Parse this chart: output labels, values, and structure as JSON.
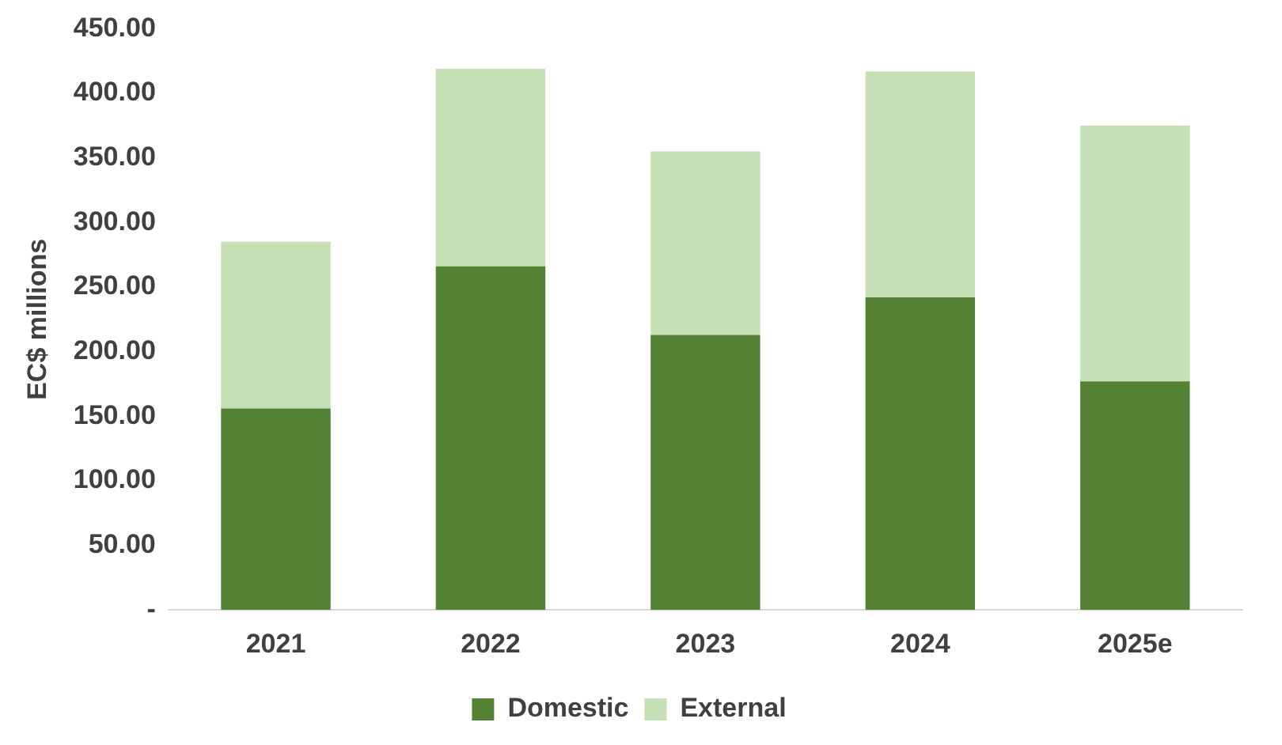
{
  "chart_data": {
    "type": "bar",
    "stacked": true,
    "ylabel": "EC$ millions",
    "categories": [
      "2021",
      "2022",
      "2023",
      "2024",
      "2025e"
    ],
    "series": [
      {
        "name": "Domestic",
        "color": "#548235",
        "values": [
          156,
          266,
          213,
          242,
          177
        ]
      },
      {
        "name": "External",
        "color": "#c5e0b4",
        "values": [
          129,
          153,
          142,
          175,
          198
        ]
      }
    ],
    "ylim": [
      0,
      450
    ],
    "yticks": [
      {
        "value": 0,
        "label": "-"
      },
      {
        "value": 50,
        "label": "50.00"
      },
      {
        "value": 100,
        "label": "100.00"
      },
      {
        "value": 150,
        "label": "150.00"
      },
      {
        "value": 200,
        "label": "200.00"
      },
      {
        "value": 250,
        "label": "250.00"
      },
      {
        "value": 300,
        "label": "300.00"
      },
      {
        "value": 350,
        "label": "350.00"
      },
      {
        "value": 400,
        "label": "400.00"
      },
      {
        "value": 450,
        "label": "450.00"
      }
    ],
    "grid": false,
    "legend": "bottom"
  }
}
